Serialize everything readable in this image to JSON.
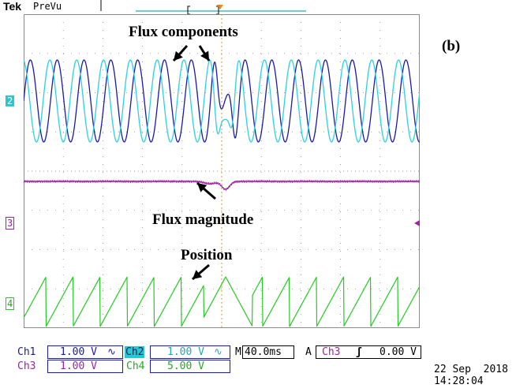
{
  "header": {
    "brand": "Tek",
    "mode": "PreVu"
  },
  "panel_label": "(b)",
  "annotations": {
    "flux_components": "Flux components",
    "flux_magnitude": "Flux magnitude",
    "position": "Position"
  },
  "channel_markers": {
    "ch2": "2",
    "ch3": "3",
    "ch4": "4"
  },
  "readouts": {
    "ch1": {
      "label": "Ch1",
      "value": "1.00 V",
      "coupling_symbol": "∿"
    },
    "ch2": {
      "label": "Ch2",
      "value": "1.00 V",
      "coupling_symbol": "∿"
    },
    "timebase": {
      "prefix": "M",
      "value": "40.0ms"
    },
    "trigger": {
      "mode": "A",
      "source": "Ch3",
      "slope_symbol": "ʃ",
      "level": "0.00 V"
    },
    "ch3": {
      "label": "Ch3",
      "value": "1.00 V"
    },
    "ch4": {
      "label": "Ch4",
      "value": "5.00 V"
    }
  },
  "timestamp": {
    "date": "22 Sep  2018",
    "time": "14:28:04"
  },
  "colors": {
    "flux_component_a": "#1a1aa8",
    "flux_component_b": "#28d4e0",
    "flux_magnitude": "#a020a8",
    "position": "#22cc22",
    "grid": "#8a8a8a"
  }
}
